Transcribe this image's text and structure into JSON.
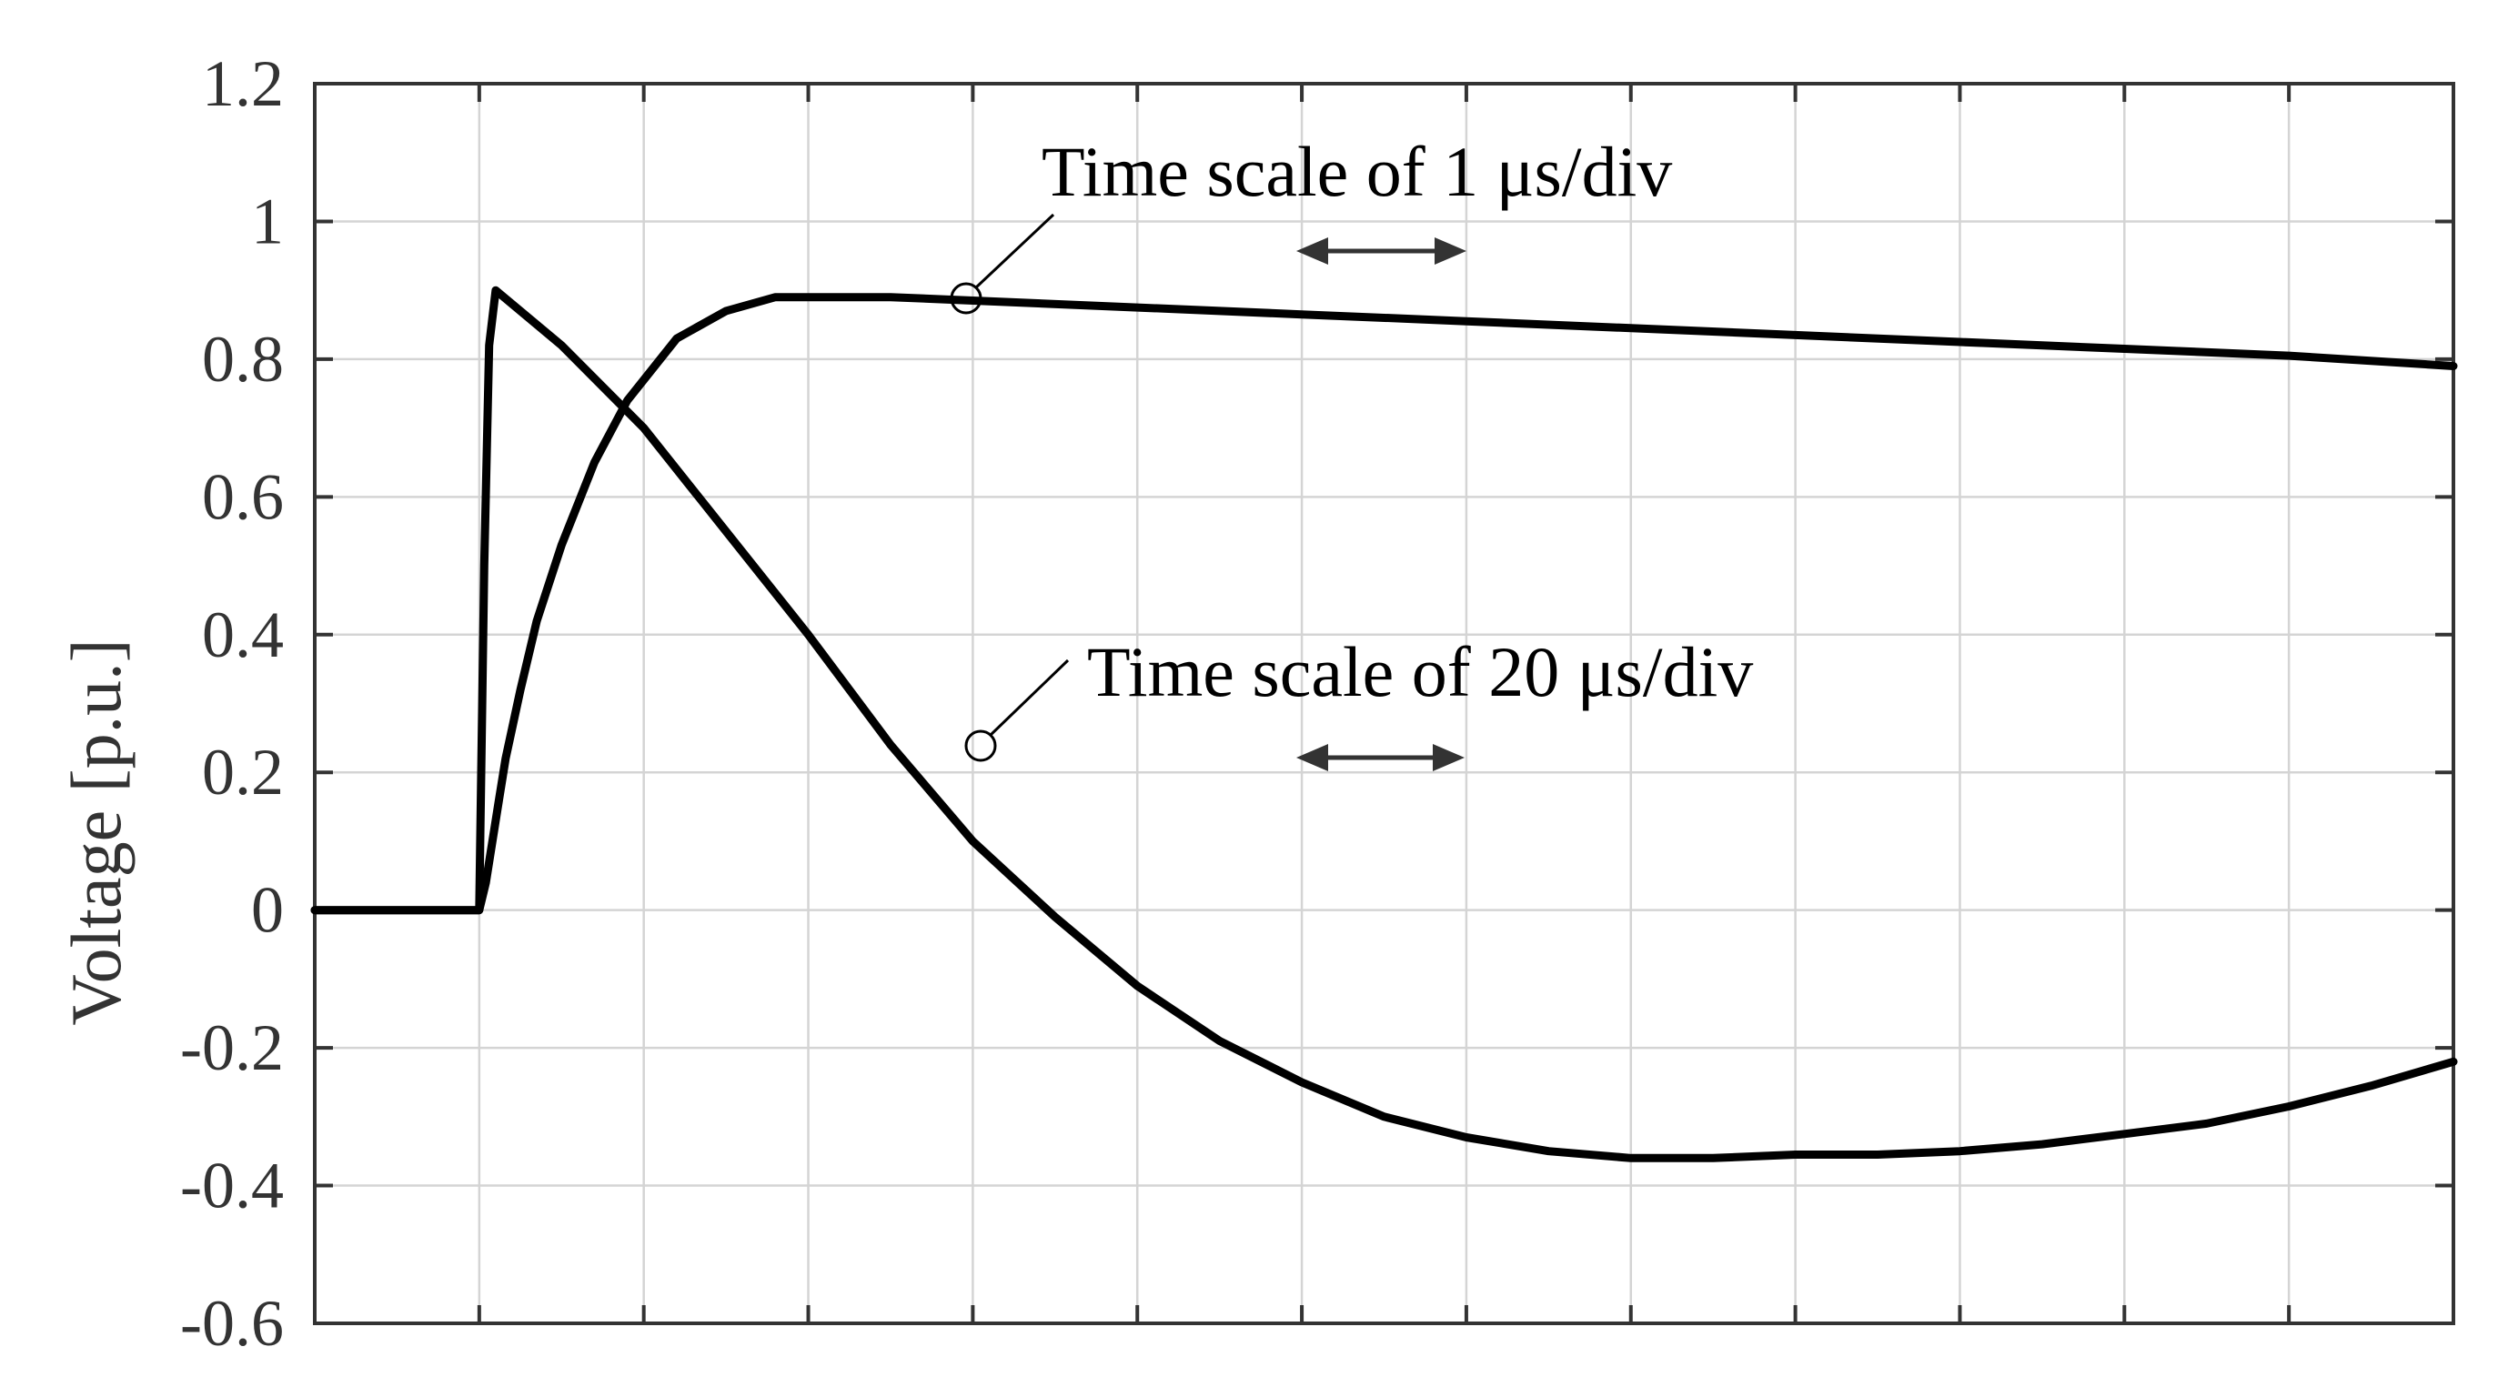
{
  "chart_data": {
    "type": "line",
    "title": "",
    "xlabel": "",
    "ylabel": "Voltage [p.u.]",
    "xlim": [
      0,
      13
    ],
    "ylim": [
      -0.6,
      1.2
    ],
    "yticks": [
      1.2,
      1,
      0.8,
      0.6,
      0.4,
      0.2,
      0,
      -0.2,
      -0.4,
      -0.6
    ],
    "ytick_labels": [
      "1.2",
      "1",
      "0.8",
      "0.6",
      "0.4",
      "0.2",
      "0",
      "-0.2",
      "-0.4",
      "-0.6"
    ],
    "xticks": [
      0,
      1,
      2,
      3,
      4,
      5,
      6,
      7,
      8,
      9,
      10,
      11,
      12,
      13
    ],
    "grid": true,
    "series": [
      {
        "x": [
          0,
          1.0,
          1.04,
          1.08,
          1.12,
          1.16,
          1.25,
          1.35,
          1.5,
          1.7,
          1.9,
          2.2,
          2.5,
          2.8,
          3.0,
          3.5,
          4.0,
          5.0,
          6.0,
          7.0,
          8.0,
          9.0,
          10.0,
          11.0,
          12.0,
          13.0
        ],
        "y": [
          0,
          0,
          0.04,
          0.1,
          0.16,
          0.22,
          0.32,
          0.42,
          0.53,
          0.65,
          0.74,
          0.83,
          0.87,
          0.89,
          0.89,
          0.89,
          0.885,
          0.875,
          0.865,
          0.855,
          0.845,
          0.835,
          0.825,
          0.815,
          0.805,
          0.79
        ]
      },
      {
        "x": [
          0,
          1.0,
          1.03,
          1.06,
          1.1,
          1.2,
          1.5,
          2.0,
          2.5,
          3.0,
          3.5,
          4.0,
          4.5,
          5.0,
          5.5,
          6.0,
          6.5,
          7.0,
          7.5,
          8.0,
          8.5,
          9.0,
          9.5,
          10.0,
          10.5,
          11.0,
          11.5,
          12.0,
          12.5,
          13.0
        ],
        "y": [
          0,
          0,
          0.5,
          0.82,
          0.9,
          0.88,
          0.82,
          0.7,
          0.55,
          0.4,
          0.24,
          0.1,
          -0.01,
          -0.11,
          -0.19,
          -0.25,
          -0.3,
          -0.33,
          -0.35,
          -0.36,
          -0.36,
          -0.355,
          -0.355,
          -0.35,
          -0.34,
          -0.325,
          -0.31,
          -0.285,
          -0.255,
          -0.22
        ]
      }
    ],
    "annotations": [
      {
        "text": "Time scale of 1 μs/div",
        "x": 4.0,
        "y": 0.89
      },
      {
        "text": "Time scale of 20 μs/div",
        "x": 4.1,
        "y": 0.24
      }
    ]
  }
}
